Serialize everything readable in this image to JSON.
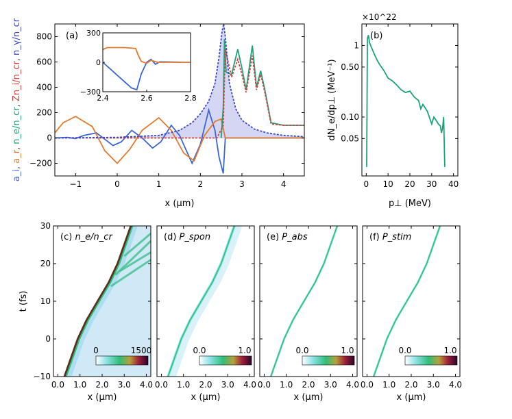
{
  "chart_data": [
    {
      "panel": "(a)",
      "type": "line",
      "xlabel": "x (μm)",
      "ylabel_parts": [
        {
          "text": "a_i",
          "color": "#3a65d6"
        },
        {
          "text": "a_r",
          "color": "#e07b2e"
        },
        {
          "text": "n_e/n_cr",
          "color": "#1aa37a"
        },
        {
          "text": "Zn_i/n_cr",
          "color": "#d6403a"
        },
        {
          "text": "n_γ/n_cr",
          "color": "#3a48c8"
        }
      ],
      "xlim": [
        -1.5,
        4.5
      ],
      "ylim": [
        -300,
        900
      ],
      "xticks": [
        "−1",
        "0",
        "1",
        "2",
        "3",
        "4"
      ],
      "yticks": [
        "−200",
        "0",
        "200",
        "400",
        "600",
        "800"
      ],
      "series": [
        {
          "name": "a_i",
          "color": "#3a65d6",
          "x": [
            -1.5,
            -1.2,
            -1.0,
            -0.8,
            -0.5,
            -0.3,
            -0.1,
            0.1,
            0.35,
            0.6,
            0.85,
            1.05,
            1.3,
            1.5,
            1.8,
            2.0,
            2.2,
            2.35,
            2.45,
            2.55,
            2.6,
            3.0,
            4.5
          ],
          "y": [
            0,
            5,
            -5,
            20,
            40,
            -10,
            -60,
            -30,
            60,
            0,
            -80,
            -30,
            100,
            20,
            -200,
            -50,
            220,
            60,
            -150,
            -280,
            0,
            0,
            0
          ]
        },
        {
          "name": "a_r",
          "color": "#e07b2e",
          "x": [
            -1.5,
            -1.3,
            -1.0,
            -0.6,
            -0.3,
            0.0,
            0.3,
            0.6,
            1.0,
            1.3,
            1.6,
            1.85,
            2.1,
            2.35,
            2.5,
            2.6,
            3.0,
            4.5
          ],
          "y": [
            40,
            120,
            170,
            90,
            -100,
            -200,
            -90,
            60,
            160,
            60,
            -120,
            -180,
            20,
            130,
            150,
            0,
            0,
            0
          ]
        },
        {
          "name": "n_e/n_cr",
          "color": "#1aa37a",
          "x": [
            2.5,
            2.55,
            2.58,
            2.62,
            2.75,
            2.9,
            3.0,
            3.1,
            3.25,
            3.35,
            3.45,
            3.55,
            3.7,
            4.0,
            4.5
          ],
          "y": [
            0,
            240,
            780,
            520,
            500,
            700,
            550,
            380,
            730,
            400,
            530,
            380,
            120,
            100,
            100
          ]
        },
        {
          "name": "Zn_i/n_cr",
          "color": "#d6403a",
          "x": [
            -1.5,
            2.0,
            2.4,
            2.55,
            2.6,
            2.75,
            2.9,
            3.0,
            3.1,
            3.25,
            3.35,
            3.45,
            3.55,
            3.7,
            4.0,
            4.5
          ],
          "y": [
            0,
            0,
            0,
            100,
            700,
            480,
            620,
            500,
            360,
            650,
            380,
            500,
            360,
            110,
            100,
            100
          ]
        },
        {
          "name": "n_γ/n_cr",
          "color": "#3a48c8",
          "x": [
            -1.5,
            0.0,
            1.0,
            1.5,
            1.8,
            2.0,
            2.2,
            2.35,
            2.45,
            2.52,
            2.56,
            2.6,
            2.7,
            2.85,
            3.0,
            3.3,
            3.6,
            4.0,
            4.5
          ],
          "y": [
            0,
            5,
            20,
            60,
            120,
            190,
            290,
            430,
            640,
            840,
            900,
            800,
            430,
            230,
            140,
            70,
            40,
            20,
            10
          ]
        }
      ],
      "inset": {
        "xlim": [
          2.4,
          2.8
        ],
        "ylim": [
          -300,
          300
        ],
        "xticks": [
          "2.4",
          "2.6",
          "2.8"
        ],
        "yticks": [
          "−300",
          "0",
          "300"
        ],
        "series": [
          {
            "name": "a_i",
            "color": "#3a65d6",
            "x": [
              2.4,
              2.45,
              2.5,
              2.53,
              2.555,
              2.575,
              2.6,
              2.62,
              2.64,
              2.66,
              2.8
            ],
            "y": [
              0,
              -100,
              -200,
              -260,
              -280,
              -120,
              0,
              30,
              -20,
              5,
              0
            ]
          },
          {
            "name": "a_r",
            "color": "#e07b2e",
            "x": [
              2.4,
              2.42,
              2.5,
              2.55,
              2.56,
              2.575,
              2.6,
              2.62,
              2.65,
              2.8
            ],
            "y": [
              130,
              150,
              150,
              140,
              80,
              10,
              -10,
              20,
              0,
              0
            ]
          }
        ]
      }
    },
    {
      "panel": "(b)",
      "type": "line",
      "scale": "log",
      "multiplier": "×10^22",
      "xlabel": "p⊥ (MeV)",
      "ylabel": "dN_e/dp⊥ (MeV⁻¹)",
      "xlim": [
        -2,
        42
      ],
      "ylim": [
        0.015,
        2.0
      ],
      "xticks": [
        "0",
        "10",
        "20",
        "30",
        "40"
      ],
      "yticks": [
        "0.05",
        "0.10",
        "0.50",
        "1"
      ],
      "color": "#1aa37a",
      "x": [
        0.2,
        0.5,
        1,
        1.5,
        2,
        3,
        4,
        5,
        6,
        8,
        10,
        12,
        14,
        16,
        18,
        20,
        22,
        24,
        25,
        26,
        28,
        30,
        31,
        32,
        33,
        34,
        34.5,
        35,
        35.5,
        36
      ],
      "y": [
        0.02,
        1.25,
        1.4,
        1.1,
        1.0,
        0.85,
        0.72,
        0.62,
        0.55,
        0.45,
        0.35,
        0.32,
        0.28,
        0.24,
        0.22,
        0.23,
        0.19,
        0.17,
        0.13,
        0.15,
        0.12,
        0.08,
        0.1,
        0.09,
        0.08,
        0.075,
        0.06,
        0.07,
        0.1,
        0.02
      ]
    },
    {
      "panel": "(c)",
      "label": "n_e/n_cr",
      "type": "heatmap",
      "colorbar": [
        "0",
        "1500"
      ],
      "xticks": [
        "0.0",
        "1.0",
        "2.0",
        "3.0",
        "4.0"
      ],
      "xlabel": "x (μm)"
    },
    {
      "panel": "(d)",
      "label": "P_spon",
      "type": "heatmap",
      "colorbar": [
        "0.0",
        "1.0"
      ],
      "xticks": [
        "0.0",
        "1.0",
        "2.0",
        "3.0",
        "4.0"
      ],
      "xlabel": "x (μm)"
    },
    {
      "panel": "(e)",
      "label": "P_abs",
      "type": "heatmap",
      "colorbar": [
        "0.0",
        "1.0"
      ],
      "xticks": [
        "0.0",
        "1.0",
        "2.0",
        "3.0",
        "4.0"
      ],
      "xlabel": "x (μm)"
    },
    {
      "panel": "(f)",
      "label": "P_stim",
      "type": "heatmap",
      "colorbar": [
        "0.0",
        "1.0"
      ],
      "xticks": [
        "0.0",
        "1.0",
        "2.0",
        "3.0",
        "4.0"
      ],
      "xlabel": "x (μm)"
    }
  ],
  "bottom_axes": {
    "ylabel": "t (fs)",
    "yticks": [
      "−10",
      "0",
      "10",
      "20",
      "30"
    ],
    "ylim": [
      -10,
      30
    ],
    "xlim": [
      -0.2,
      4.2
    ]
  }
}
